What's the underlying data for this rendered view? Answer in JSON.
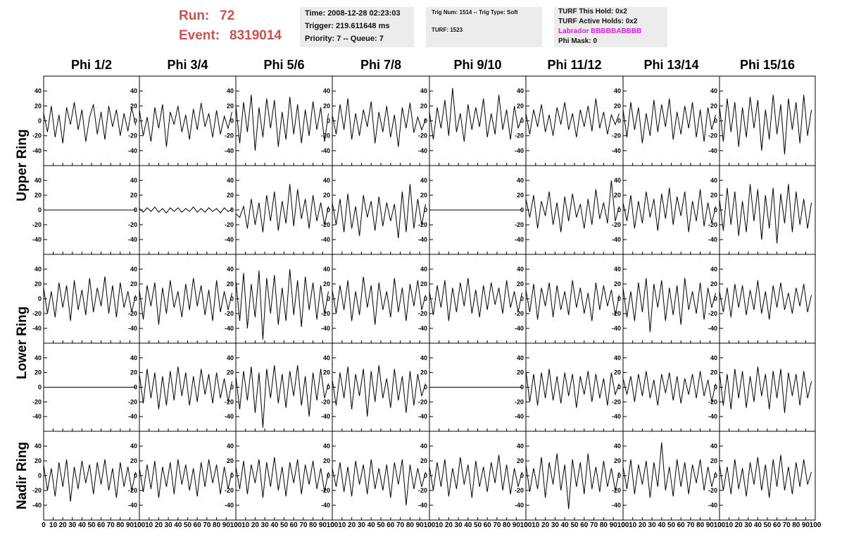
{
  "header": {
    "run_label": "Run:",
    "run": "72",
    "event_label": "Event:",
    "event": "8319014",
    "time": "Time: 2008-12-28 02:23:03",
    "trigger": "Trigger: 219.611648 ms",
    "priority": "Priority: 7 -- Queue: 7",
    "trig_num": "Trig Num: 1514 -- Trig Type: Soft",
    "turf": "TURF: 1523",
    "turf_hold": "TURF This Hold: 0x2",
    "turf_active": "TURF Active Holds: 0x2",
    "labrador": "Labrador BBBBBABBBB",
    "phi_mask": "Phi Mask: 0"
  },
  "chart_data": {
    "type": "line",
    "color": "#000000",
    "columns": [
      "Phi 1/2",
      "Phi 3/4",
      "Phi 5/6",
      "Phi 7/8",
      "Phi 9/10",
      "Phi 11/12",
      "Phi 13/14",
      "Phi 15/16"
    ],
    "ring_labels": [
      "Upper Ring",
      "Lower Ring",
      "Nadir Ring"
    ],
    "xlim": [
      0,
      100
    ],
    "xticks": [
      0,
      10,
      20,
      30,
      40,
      50,
      60,
      70,
      80,
      90,
      100
    ],
    "ylim": [
      -60,
      60
    ],
    "yticks": [
      -40,
      -20,
      0,
      20,
      40
    ],
    "x": [
      0,
      4,
      8,
      12,
      16,
      20,
      24,
      28,
      32,
      36,
      40,
      44,
      48,
      52,
      56,
      60,
      64,
      68,
      72,
      76,
      80,
      84,
      88,
      92,
      96
    ],
    "panels": [
      [
        {
          "values": [
            10,
            -15,
            20,
            -22,
            8,
            -30,
            18,
            -5,
            25,
            -12,
            15,
            -28,
            5,
            22,
            -18,
            12,
            -25,
            20,
            -8,
            15,
            -20,
            10,
            -14,
            18,
            -6
          ]
        },
        {
          "values": [
            15,
            -20,
            5,
            -28,
            18,
            -10,
            22,
            -35,
            12,
            -5,
            20,
            -15,
            8,
            -25,
            16,
            -12,
            24,
            -8,
            10,
            -22,
            14,
            -18,
            6,
            -10,
            12
          ]
        },
        {
          "values": [
            20,
            -30,
            25,
            -15,
            35,
            -40,
            18,
            -22,
            30,
            -10,
            28,
            -35,
            12,
            -25,
            32,
            -18,
            22,
            -30,
            15,
            -20,
            26,
            -12,
            18,
            -28,
            10
          ]
        },
        {
          "values": [
            8,
            -18,
            22,
            -12,
            30,
            -25,
            10,
            -20,
            15,
            -8,
            26,
            -30,
            12,
            -15,
            20,
            -22,
            8,
            -35,
            18,
            -10,
            24,
            -16,
            5,
            -12,
            2
          ]
        },
        {
          "values": [
            12,
            -25,
            18,
            -10,
            28,
            -20,
            44,
            -15,
            10,
            -28,
            22,
            -12,
            18,
            -8,
            30,
            -22,
            10,
            -18,
            35,
            -12,
            15,
            -25,
            20,
            -10,
            5
          ]
        },
        {
          "values": [
            10,
            -18,
            15,
            -8,
            22,
            -15,
            8,
            -20,
            18,
            -5,
            25,
            -12,
            10,
            -22,
            15,
            -8,
            20,
            -14,
            30,
            -10,
            12,
            -18,
            8,
            -5,
            10
          ]
        },
        {
          "values": [
            15,
            -22,
            25,
            -12,
            18,
            -30,
            10,
            -20,
            28,
            -15,
            22,
            -8,
            30,
            -25,
            12,
            -18,
            20,
            -10,
            25,
            -22,
            15,
            -28,
            18,
            -12,
            8
          ]
        },
        {
          "values": [
            20,
            -28,
            30,
            -15,
            25,
            -35,
            18,
            -22,
            32,
            -10,
            28,
            -40,
            15,
            -25,
            35,
            -18,
            22,
            -45,
            30,
            -12,
            25,
            -30,
            35,
            -20,
            15
          ]
        }
      ],
      [
        {
          "values": [
            0,
            0,
            0,
            0,
            0,
            0,
            0,
            0,
            0,
            0,
            0,
            0,
            0,
            0,
            0,
            0,
            0,
            0,
            0,
            0,
            0,
            0,
            0,
            0,
            0
          ]
        },
        {
          "values": [
            2,
            -3,
            3,
            -2,
            4,
            -3,
            2,
            -4,
            3,
            -2,
            3,
            -3,
            2,
            -2,
            4,
            -3,
            2,
            -3,
            3,
            -2,
            2,
            -4,
            3,
            -2,
            1
          ]
        },
        {
          "values": [
            -5,
            -10,
            5,
            -25,
            15,
            -20,
            10,
            -30,
            20,
            -15,
            25,
            -28,
            12,
            -18,
            35,
            -22,
            28,
            -12,
            15,
            -25,
            20,
            -15,
            10,
            -20,
            5
          ]
        },
        {
          "values": [
            10,
            -20,
            15,
            -30,
            22,
            -25,
            5,
            -35,
            20,
            -10,
            12,
            -28,
            18,
            -22,
            10,
            -15,
            8,
            -38,
            25,
            -30,
            35,
            -25,
            15,
            -20,
            8
          ]
        },
        {
          "values": [
            0,
            0,
            0,
            0,
            0,
            0,
            0,
            0,
            0,
            0,
            0,
            0,
            0,
            0,
            0,
            0,
            0,
            0,
            0,
            0,
            0,
            0,
            0,
            0,
            0
          ]
        },
        {
          "values": [
            15,
            -10,
            20,
            -25,
            12,
            -8,
            25,
            -20,
            10,
            -30,
            18,
            -15,
            22,
            -10,
            8,
            -25,
            15,
            -20,
            28,
            -12,
            10,
            -18,
            40,
            -15,
            5
          ]
        },
        {
          "values": [
            10,
            -15,
            20,
            -25,
            12,
            -18,
            25,
            -10,
            15,
            -28,
            22,
            -12,
            30,
            -20,
            18,
            -8,
            25,
            -30,
            12,
            -15,
            28,
            -22,
            10,
            -18,
            5
          ]
        },
        {
          "values": [
            15,
            -28,
            30,
            -20,
            25,
            -35,
            12,
            -30,
            35,
            -15,
            28,
            -40,
            20,
            -25,
            30,
            -45,
            22,
            -18,
            35,
            -30,
            25,
            -20,
            15,
            -25,
            10
          ]
        }
      ],
      [
        {
          "values": [
            15,
            -20,
            10,
            -25,
            22,
            -12,
            18,
            -30,
            25,
            -15,
            12,
            -22,
            28,
            -18,
            15,
            -10,
            30,
            -20,
            18,
            -25,
            22,
            -12,
            10,
            -18,
            5
          ]
        },
        {
          "values": [
            12,
            -28,
            18,
            -10,
            22,
            -35,
            15,
            -20,
            25,
            -12,
            10,
            -25,
            20,
            -15,
            28,
            -10,
            18,
            -22,
            12,
            -30,
            25,
            -18,
            10,
            -15,
            8
          ]
        },
        {
          "values": [
            25,
            -30,
            35,
            -40,
            20,
            -25,
            38,
            -55,
            28,
            -20,
            32,
            -35,
            15,
            -30,
            40,
            -22,
            25,
            -38,
            30,
            -15,
            22,
            -28,
            18,
            -20,
            10
          ]
        },
        {
          "values": [
            12,
            -20,
            18,
            -15,
            25,
            -30,
            10,
            -22,
            30,
            -12,
            18,
            -35,
            22,
            -15,
            10,
            -25,
            28,
            -18,
            15,
            -30,
            20,
            -10,
            25,
            -15,
            5
          ]
        },
        {
          "values": [
            10,
            -22,
            18,
            -12,
            25,
            -30,
            15,
            -18,
            22,
            -10,
            28,
            -20,
            12,
            -25,
            18,
            -15,
            22,
            -8,
            15,
            -20,
            25,
            -12,
            10,
            -18,
            8
          ]
        },
        {
          "values": [
            12,
            -18,
            20,
            -28,
            15,
            -10,
            22,
            -25,
            18,
            -15,
            10,
            -22,
            25,
            -12,
            15,
            -20,
            8,
            -30,
            22,
            -15,
            18,
            -10,
            12,
            -22,
            5
          ]
        },
        {
          "values": [
            15,
            -25,
            10,
            -30,
            22,
            -18,
            28,
            -45,
            20,
            -12,
            25,
            -30,
            15,
            -22,
            18,
            -35,
            28,
            -15,
            10,
            -20,
            22,
            -28,
            15,
            -12,
            8
          ]
        },
        {
          "values": [
            10,
            -18,
            15,
            -25,
            20,
            -12,
            18,
            -22,
            12,
            -15,
            25,
            -20,
            10,
            -28,
            18,
            -12,
            22,
            -15,
            8,
            -20,
            15,
            -10,
            20,
            -18,
            5
          ]
        }
      ],
      [
        {
          "values": [
            0,
            0,
            0,
            0,
            0,
            0,
            0,
            0,
            0,
            0,
            0,
            0,
            0,
            0,
            0,
            0,
            0,
            0,
            0,
            0,
            0,
            0,
            0,
            0,
            0
          ]
        },
        {
          "values": [
            18,
            -22,
            25,
            -15,
            20,
            -30,
            15,
            -25,
            22,
            -18,
            28,
            -12,
            20,
            -25,
            15,
            -20,
            25,
            -10,
            18,
            -22,
            20,
            -15,
            12,
            -20,
            8
          ]
        },
        {
          "values": [
            15,
            -30,
            22,
            -18,
            28,
            -35,
            20,
            -55,
            25,
            -15,
            30,
            -22,
            18,
            -28,
            22,
            -12,
            30,
            -25,
            15,
            -40,
            20,
            -18,
            25,
            -15,
            5
          ]
        },
        {
          "values": [
            10,
            -25,
            20,
            -15,
            28,
            -30,
            18,
            -12,
            25,
            -40,
            22,
            -20,
            30,
            -15,
            12,
            -28,
            25,
            -18,
            15,
            -35,
            22,
            -25,
            18,
            -12,
            5
          ]
        },
        {
          "values": [
            0,
            0,
            0,
            0,
            0,
            0,
            0,
            0,
            0,
            0,
            0,
            0,
            0,
            0,
            0,
            0,
            0,
            0,
            0,
            0,
            0,
            0,
            0,
            0,
            0
          ]
        },
        {
          "values": [
            22,
            -20,
            18,
            -25,
            20,
            -15,
            25,
            -18,
            15,
            -22,
            20,
            -12,
            18,
            -28,
            15,
            -10,
            22,
            -20,
            18,
            -15,
            12,
            -25,
            20,
            -10,
            5
          ]
        },
        {
          "values": [
            12,
            -10,
            15,
            -20,
            18,
            -12,
            22,
            -15,
            10,
            -25,
            18,
            -8,
            20,
            -18,
            15,
            -22,
            12,
            -10,
            18,
            -15,
            22,
            -12,
            10,
            -20,
            5
          ]
        },
        {
          "values": [
            20,
            -25,
            18,
            -30,
            25,
            -15,
            22,
            -28,
            15,
            -20,
            28,
            -12,
            18,
            -30,
            22,
            -15,
            25,
            -35,
            20,
            -12,
            18,
            -25,
            22,
            -15,
            8
          ]
        }
      ],
      [
        {
          "values": [
            15,
            -20,
            10,
            -28,
            18,
            -15,
            22,
            -35,
            12,
            -18,
            20,
            -10,
            15,
            -25,
            18,
            -12,
            22,
            -20,
            10,
            -30,
            18,
            -15,
            12,
            -20,
            5
          ]
        },
        {
          "values": [
            10,
            -22,
            15,
            -18,
            20,
            -30,
            12,
            -15,
            18,
            -25,
            22,
            -12,
            15,
            -20,
            10,
            -28,
            18,
            -15,
            22,
            -10,
            15,
            -25,
            12,
            -18,
            5
          ]
        },
        {
          "values": [
            12,
            -18,
            20,
            -25,
            15,
            -10,
            22,
            -30,
            18,
            -15,
            25,
            -20,
            12,
            -28,
            18,
            -10,
            22,
            -25,
            15,
            -12,
            20,
            -18,
            10,
            -22,
            5
          ]
        },
        {
          "values": [
            10,
            -15,
            18,
            -22,
            12,
            -28,
            20,
            -12,
            15,
            -25,
            22,
            -18,
            10,
            -20,
            15,
            -30,
            18,
            -12,
            22,
            -40,
            15,
            -18,
            10,
            -15,
            5
          ]
        },
        {
          "values": [
            12,
            -20,
            18,
            -15,
            22,
            -28,
            10,
            -18,
            25,
            -12,
            15,
            -30,
            20,
            -15,
            12,
            -22,
            18,
            -10,
            28,
            -20,
            15,
            -25,
            10,
            -15,
            5
          ]
        },
        {
          "values": [
            15,
            -22,
            10,
            -18,
            25,
            -30,
            18,
            -12,
            30,
            -20,
            15,
            -45,
            22,
            -15,
            18,
            -25,
            30,
            -18,
            12,
            -22,
            20,
            -15,
            10,
            -20,
            5
          ]
        },
        {
          "values": [
            12,
            -18,
            22,
            -25,
            15,
            -12,
            20,
            -30,
            18,
            -15,
            45,
            -20,
            12,
            -28,
            22,
            -15,
            18,
            -25,
            15,
            -10,
            22,
            -20,
            12,
            -15,
            5
          ]
        },
        {
          "values": [
            15,
            -20,
            12,
            -25,
            22,
            -18,
            10,
            -28,
            18,
            -12,
            25,
            -20,
            15,
            -30,
            22,
            -15,
            28,
            -20,
            12,
            -25,
            18,
            -15,
            22,
            -12,
            5
          ]
        }
      ]
    ]
  }
}
